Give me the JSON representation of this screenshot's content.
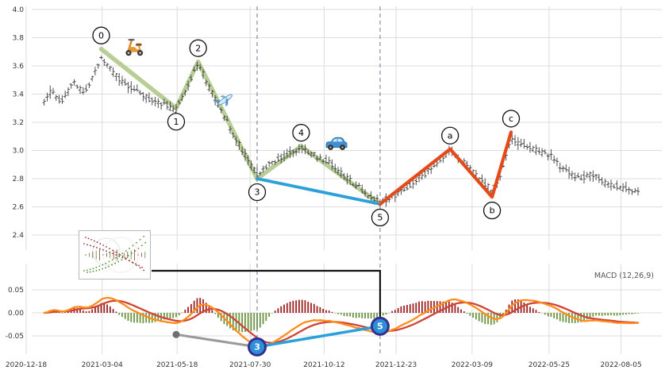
{
  "figure": {
    "macd_label": "MACD (12,26,9)"
  },
  "chart_data": [
    {
      "type": "candlestick",
      "panel": "price",
      "title": "",
      "grid": true,
      "bar_color": "#3c3c3c",
      "ylim": [
        2.35,
        4.05
      ],
      "y_ticks": [
        4.0,
        3.8,
        3.6,
        3.4,
        3.2,
        3.0,
        2.8,
        2.6,
        2.4
      ],
      "x_tick_labels": [
        "2020-12-18",
        "2021-03-04",
        "2021-05-18",
        "2021-07-30",
        "2021-10-12",
        "2021-12-23",
        "2022-03-09",
        "2022-05-25",
        "2022-08-05"
      ],
      "price_keypoints": [
        [
          "2020-12-18",
          3.2
        ],
        [
          "2021-01-02",
          3.3
        ],
        [
          "2021-01-12",
          3.42
        ],
        [
          "2021-01-22",
          3.35
        ],
        [
          "2021-02-03",
          3.48
        ],
        [
          "2021-02-14",
          3.42
        ],
        [
          "2021-02-22",
          3.52
        ],
        [
          "2021-03-03",
          3.66
        ],
        [
          "2021-03-14",
          3.56
        ],
        [
          "2021-03-26",
          3.47
        ],
        [
          "2021-04-08",
          3.43
        ],
        [
          "2021-04-20",
          3.36
        ],
        [
          "2021-05-04",
          3.33
        ],
        [
          "2021-05-17",
          3.29
        ],
        [
          "2021-05-28",
          3.44
        ],
        [
          "2021-06-08",
          3.62
        ],
        [
          "2021-06-20",
          3.43
        ],
        [
          "2021-07-02",
          3.27
        ],
        [
          "2021-07-15",
          3.09
        ],
        [
          "2021-07-27",
          2.94
        ],
        [
          "2021-08-06",
          2.83
        ],
        [
          "2021-08-18",
          2.91
        ],
        [
          "2021-09-01",
          2.96
        ],
        [
          "2021-09-19",
          3.02
        ],
        [
          "2021-10-01",
          2.97
        ],
        [
          "2021-10-15",
          2.93
        ],
        [
          "2021-10-28",
          2.84
        ],
        [
          "2021-11-10",
          2.77
        ],
        [
          "2021-11-22",
          2.7
        ],
        [
          "2021-12-07",
          2.63
        ],
        [
          "2021-12-23",
          2.69
        ],
        [
          "2022-01-08",
          2.77
        ],
        [
          "2022-01-22",
          2.84
        ],
        [
          "2022-02-05",
          2.93
        ],
        [
          "2022-02-15",
          3.0
        ],
        [
          "2022-02-25",
          2.94
        ],
        [
          "2022-03-12",
          2.84
        ],
        [
          "2022-03-29",
          2.71
        ],
        [
          "2022-04-08",
          2.86
        ],
        [
          "2022-04-17",
          3.09
        ],
        [
          "2022-04-28",
          3.04
        ],
        [
          "2022-05-12",
          3.0
        ],
        [
          "2022-05-25",
          2.97
        ],
        [
          "2022-06-08",
          2.87
        ],
        [
          "2022-06-22",
          2.8
        ],
        [
          "2022-07-06",
          2.83
        ],
        [
          "2022-07-20",
          2.77
        ],
        [
          "2022-08-05",
          2.74
        ],
        [
          "2022-08-23",
          2.71
        ]
      ],
      "wave_points": [
        {
          "label": "0",
          "date": "2021-03-03",
          "price": 3.72,
          "dir": "up"
        },
        {
          "label": "1",
          "date": "2021-05-17",
          "price": 3.3,
          "dir": "down"
        },
        {
          "label": "2",
          "date": "2021-06-08",
          "price": 3.63,
          "dir": "up"
        },
        {
          "label": "3",
          "date": "2021-08-06",
          "price": 2.8,
          "dir": "down"
        },
        {
          "label": "4",
          "date": "2021-09-19",
          "price": 3.03,
          "dir": "up"
        },
        {
          "label": "5",
          "date": "2021-12-07",
          "price": 2.62,
          "dir": "down"
        },
        {
          "label": "a",
          "date": "2022-02-15",
          "price": 3.01,
          "dir": "up"
        },
        {
          "label": "b",
          "date": "2022-03-29",
          "price": 2.67,
          "dir": "down"
        },
        {
          "label": "c",
          "date": "2022-04-17",
          "price": 3.13,
          "dir": "up"
        }
      ],
      "impulse_line": {
        "labels": [
          "0",
          "1",
          "2",
          "3",
          "4",
          "5"
        ],
        "color": "#abc584"
      },
      "blue_line": {
        "labels": [
          "3",
          "5"
        ],
        "color": "#2ba0d9"
      },
      "correction_line": {
        "labels": [
          "5",
          "a",
          "b",
          "c"
        ],
        "color": "#e64a19"
      },
      "dashed_vlines": [
        "2021-08-06",
        "2021-12-07"
      ],
      "event_markers": [
        {
          "icon": "scooter-icon",
          "date": "2021-04-05",
          "price": 3.74
        },
        {
          "icon": "airplane-icon",
          "date": "2021-07-05",
          "price": 3.36
        },
        {
          "icon": "car-icon",
          "date": "2021-10-24",
          "price": 3.05
        }
      ]
    },
    {
      "type": "macd",
      "panel": "indicator",
      "label": "MACD (12,26,9)",
      "params": [
        12,
        26,
        9
      ],
      "y_ticks": [
        0.05,
        0,
        -0.05
      ],
      "ylim": [
        -0.093,
        0.107
      ],
      "line_colors": {
        "macd": "#ff8c1a",
        "signal": "#cf4436"
      },
      "hist_colors": {
        "positive": "#9e2121",
        "negative": "#6d9440"
      },
      "markers": [
        {
          "label": "3",
          "date": "2021-08-06",
          "value": -0.074
        },
        {
          "label": "5",
          "date": "2021-12-07",
          "value": -0.029
        }
      ],
      "gray_dot": {
        "date": "2021-05-17",
        "value": -0.047
      },
      "marker_color": "#2e8fd8",
      "marker_ring": "#33308f"
    }
  ]
}
